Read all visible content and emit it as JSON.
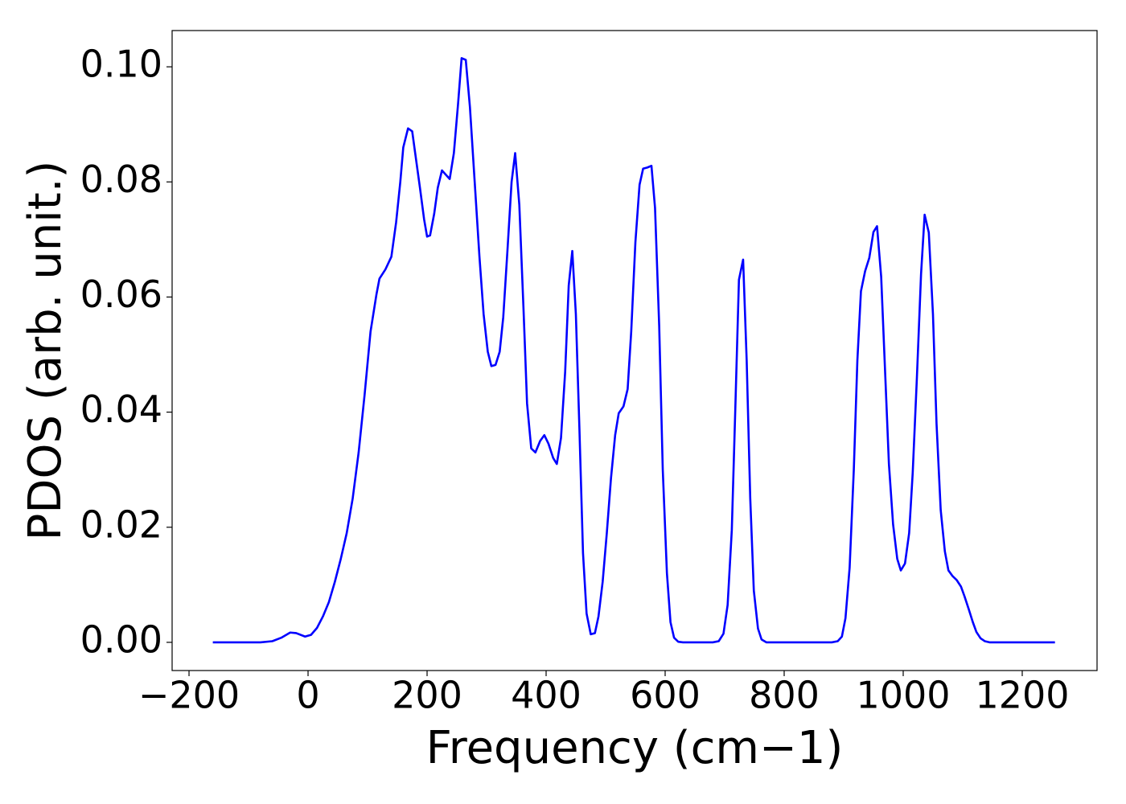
{
  "chart_data": {
    "type": "line",
    "xlabel": "Frequency (cm−1)",
    "ylabel": "PDOS (arb. unit.)",
    "x": [
      -160,
      -80,
      -60,
      -45,
      -30,
      -20,
      -5,
      5,
      15,
      25,
      35,
      45,
      55,
      65,
      75,
      85,
      95,
      105,
      115,
      120,
      130,
      140,
      148,
      155,
      160,
      168,
      175,
      180,
      188,
      195,
      200,
      205,
      212,
      218,
      225,
      238,
      245,
      252,
      258,
      265,
      272,
      280,
      288,
      295,
      302,
      308,
      315,
      322,
      328,
      335,
      342,
      348,
      355,
      362,
      368,
      375,
      382,
      390,
      397,
      404,
      412,
      418,
      425,
      432,
      438,
      444,
      450,
      456,
      462,
      468,
      475,
      482,
      488,
      495,
      502,
      509,
      516,
      522,
      530,
      537,
      543,
      550,
      557,
      563,
      570,
      577,
      583,
      590,
      596,
      603,
      609,
      615,
      622,
      630,
      680,
      690,
      698,
      705,
      712,
      718,
      724,
      731,
      737,
      743,
      749,
      756,
      762,
      770,
      880,
      890,
      897,
      903,
      910,
      917,
      923,
      929,
      936,
      943,
      950,
      956,
      963,
      970,
      976,
      983,
      990,
      996,
      1003,
      1010,
      1016,
      1023,
      1030,
      1036,
      1043,
      1050,
      1056,
      1063,
      1070,
      1076,
      1083,
      1090,
      1097,
      1103,
      1110,
      1117,
      1123,
      1130,
      1137,
      1145,
      1255
    ],
    "series": [
      {
        "color": "#0000ff",
        "values": [
          0,
          0,
          0.0002,
          0.0008,
          0.0017,
          0.0016,
          0.001,
          0.0013,
          0.0025,
          0.0045,
          0.007,
          0.0105,
          0.0145,
          0.019,
          0.025,
          0.033,
          0.043,
          0.054,
          0.0605,
          0.0632,
          0.0648,
          0.067,
          0.073,
          0.08,
          0.086,
          0.0893,
          0.0888,
          0.085,
          0.079,
          0.0735,
          0.0705,
          0.0707,
          0.0745,
          0.079,
          0.082,
          0.0805,
          0.085,
          0.0935,
          0.1015,
          0.1012,
          0.093,
          0.08,
          0.067,
          0.057,
          0.0505,
          0.048,
          0.0482,
          0.0505,
          0.0565,
          0.068,
          0.08,
          0.085,
          0.076,
          0.058,
          0.0415,
          0.0337,
          0.033,
          0.035,
          0.036,
          0.0345,
          0.032,
          0.031,
          0.0355,
          0.047,
          0.062,
          0.068,
          0.057,
          0.037,
          0.0155,
          0.005,
          0.0014,
          0.0016,
          0.0045,
          0.0105,
          0.019,
          0.0285,
          0.036,
          0.0398,
          0.041,
          0.044,
          0.054,
          0.0695,
          0.0795,
          0.0823,
          0.0825,
          0.0828,
          0.0755,
          0.055,
          0.03,
          0.012,
          0.0035,
          0.0008,
          0.0001,
          0,
          0,
          0.0002,
          0.0015,
          0.0065,
          0.0195,
          0.041,
          0.063,
          0.0665,
          0.049,
          0.025,
          0.009,
          0.0024,
          0.0005,
          0,
          0,
          0.0002,
          0.001,
          0.0042,
          0.013,
          0.03,
          0.049,
          0.061,
          0.0645,
          0.0668,
          0.0713,
          0.0723,
          0.0635,
          0.046,
          0.031,
          0.0205,
          0.0145,
          0.0125,
          0.0137,
          0.019,
          0.0295,
          0.046,
          0.064,
          0.0743,
          0.0712,
          0.057,
          0.038,
          0.023,
          0.0158,
          0.0125,
          0.0115,
          0.0108,
          0.0097,
          0.008,
          0.0058,
          0.0035,
          0.0018,
          0.0007,
          0.0002,
          0,
          0
        ]
      }
    ],
    "xlim": [
      -228.4,
      1325.7
    ],
    "ylim": [
      -0.0049,
      0.1063
    ],
    "xticks": [
      {
        "value": -200,
        "label": "−200"
      },
      0,
      200,
      400,
      600,
      800,
      1000,
      1200
    ],
    "yticks": [
      {
        "value": 0,
        "label": "0.00"
      },
      {
        "value": 0.02,
        "label": "0.02"
      },
      {
        "value": 0.04,
        "label": "0.04"
      },
      {
        "value": 0.06,
        "label": "0.06"
      },
      {
        "value": 0.08,
        "label": "0.08"
      },
      {
        "value": 0.1,
        "label": "0.10"
      }
    ],
    "grid": false
  }
}
